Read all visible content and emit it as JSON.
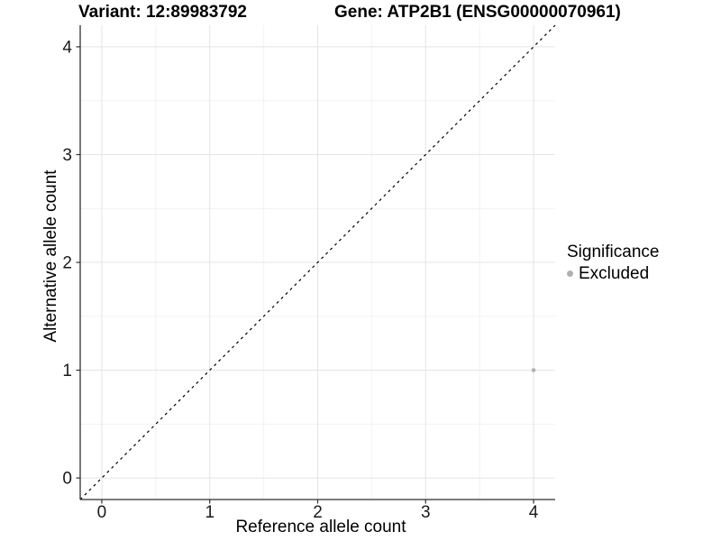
{
  "colors": {
    "background": "#ffffff",
    "grid_major": "#e4e4e4",
    "grid_minor": "#f2f2f2",
    "axis_line": "#2f2f2f",
    "tick_mark": "#2f2f2f",
    "tick_label": "#1a1a1a",
    "title_text": "#000000",
    "point": "#b0b0b0"
  },
  "chart_data": {
    "type": "scatter",
    "titles": {
      "variant": "Variant: 12:89983792",
      "gene": "Gene: ATP2B1 (ENSG00000070961)"
    },
    "xlabel": "Reference allele count",
    "ylabel": "Alternative allele count",
    "xlim": [
      -0.2,
      4.2
    ],
    "ylim": [
      -0.2,
      4.2
    ],
    "x_ticks": [
      0,
      1,
      2,
      3,
      4
    ],
    "y_ticks": [
      0,
      1,
      2,
      3,
      4
    ],
    "x_minor_ticks": [
      0.5,
      1.5,
      2.5,
      3.5
    ],
    "y_minor_ticks": [
      0.5,
      1.5,
      2.5,
      3.5
    ],
    "grid": "major and minor gridlines, white panel",
    "reference_line": {
      "kind": "identity",
      "equation": "y = x",
      "style": "dashed",
      "color": "#000000"
    },
    "series": [
      {
        "name": "Excluded",
        "marker": "circle",
        "color": "#b0b0b0",
        "points": [
          {
            "x": 4,
            "y": 1
          }
        ]
      }
    ],
    "legend": {
      "title": "Significance",
      "position": "right",
      "items": [
        {
          "label": "Excluded",
          "color": "#b0b0b0",
          "marker": "circle"
        }
      ]
    }
  }
}
